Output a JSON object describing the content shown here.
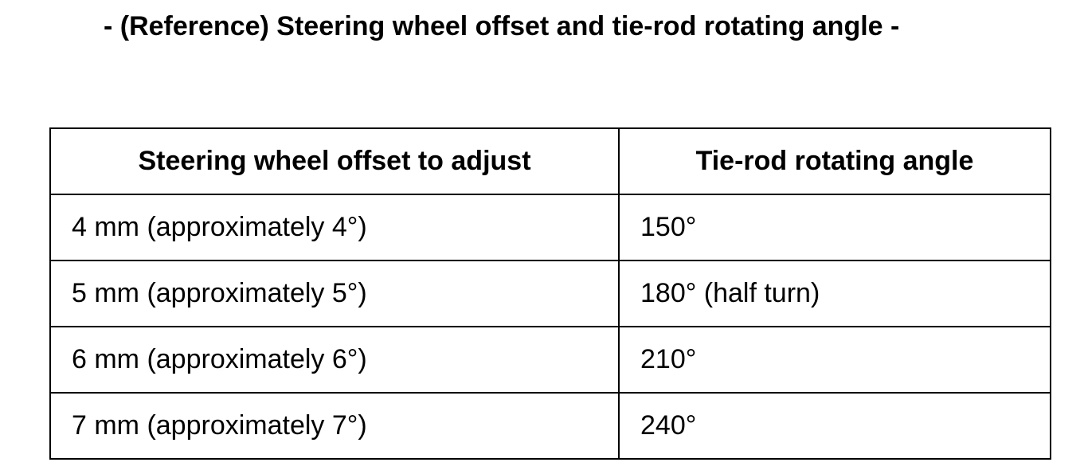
{
  "title": "- (Reference) Steering wheel offset and tie-rod rotating angle -",
  "table": {
    "headers": [
      "Steering wheel offset to adjust",
      "Tie-rod rotating angle"
    ],
    "rows": [
      [
        "4 mm (approximately 4°)",
        "150°"
      ],
      [
        "5 mm (approximately 5°)",
        "180° (half turn)"
      ],
      [
        "6 mm (approximately 6°)",
        "210°"
      ],
      [
        "7 mm (approximately 7°)",
        "240°"
      ]
    ]
  }
}
